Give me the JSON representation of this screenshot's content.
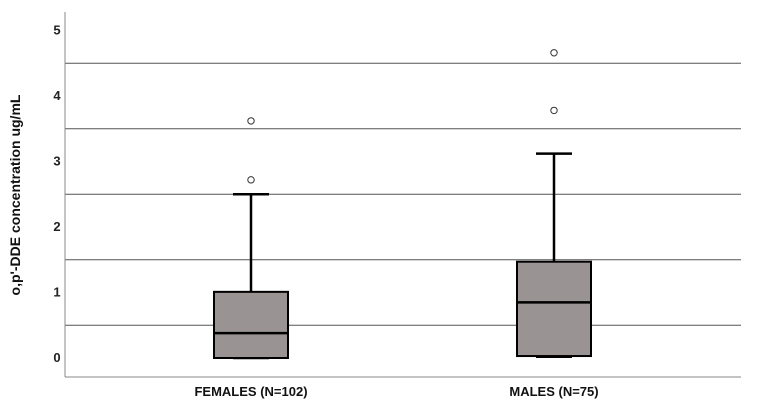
{
  "chart_data": {
    "type": "boxplot",
    "ylabel": "o,p'-DDE concentration ug/mL",
    "ylim": [
      -0.1,
      5.3
    ],
    "yticks": [
      "0",
      "1",
      "2",
      "3",
      "4",
      "5"
    ],
    "reference_lines": [
      0.5,
      1.5,
      2.5,
      3.5,
      4.5
    ],
    "categories": [
      "FEMALES (N=102)",
      "MALES (N=75)"
    ],
    "boxes": [
      {
        "category": "FEMALES (N=102)",
        "min": 0.0,
        "q1": 0.0,
        "median": 0.38,
        "q3": 1.01,
        "max": 2.5,
        "outliers": [
          2.72,
          3.62
        ]
      },
      {
        "category": "MALES (N=75)",
        "min": 0.02,
        "q1": 0.03,
        "median": 0.85,
        "q3": 1.47,
        "max": 3.12,
        "outliers": [
          3.78,
          4.66
        ]
      }
    ],
    "colors": {
      "box_fill": "#999393",
      "stroke": "#000000",
      "grid": "#555555",
      "axis": "#888888"
    }
  }
}
